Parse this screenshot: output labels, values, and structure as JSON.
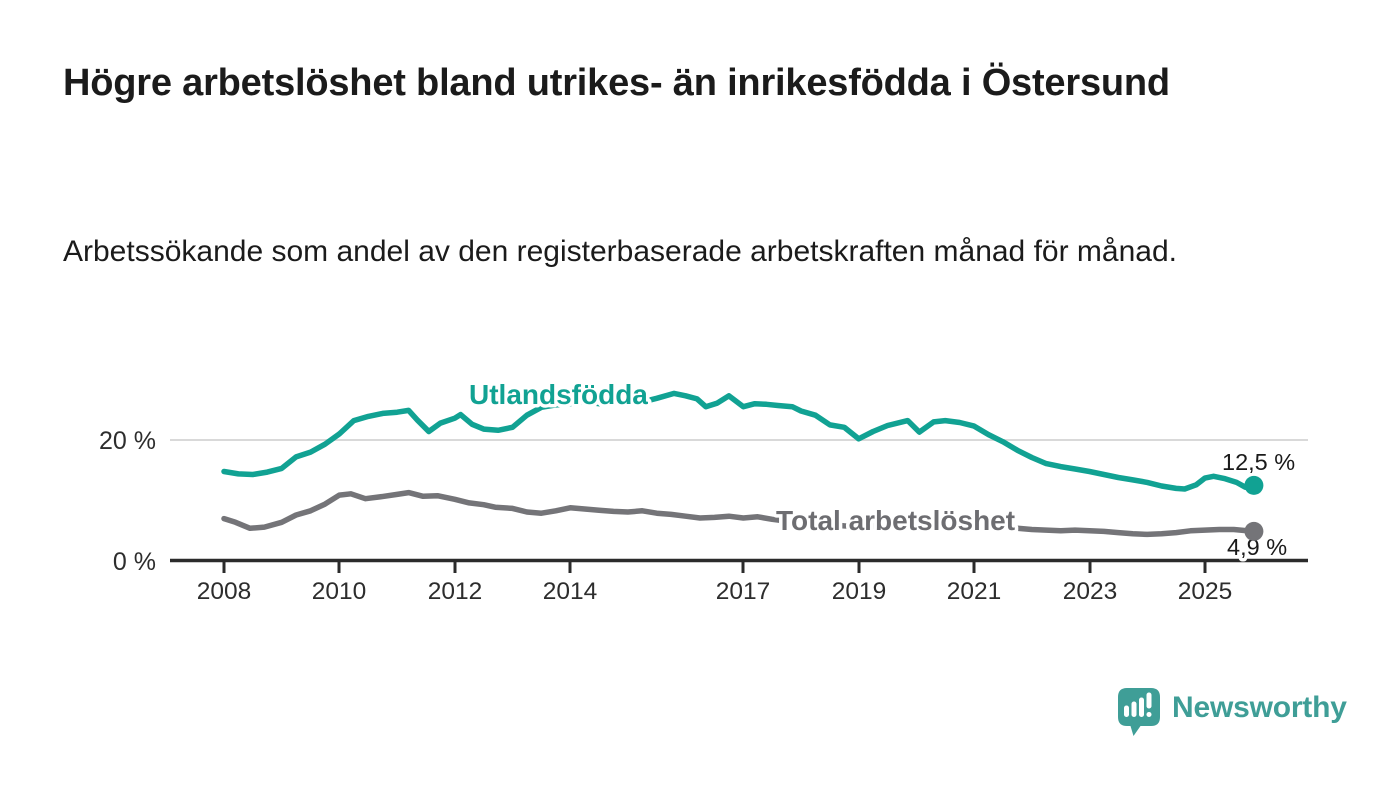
{
  "header": {
    "title": "Högre arbetslöshet bland utrikes- än inrikesfödda i Östersund",
    "subtitle": "Arbetssökande som andel av den registerbaserade arbetskraften månad för månad."
  },
  "chart_data": {
    "type": "line",
    "title": "Högre arbetslöshet bland utrikes- än inrikesfödda i Östersund",
    "subtitle": "Arbetssökande som andel av den registerbaserade arbetskraften månad för månad.",
    "unit": "%",
    "x_ticks": [
      "2008",
      "2010",
      "2012",
      "2014",
      "2017",
      "2019",
      "2021",
      "2023",
      "2025"
    ],
    "y_ticks": [
      {
        "value": 20,
        "label": "20 %"
      },
      {
        "value": 0,
        "label": "0 %"
      }
    ],
    "ylim": [
      0,
      30
    ],
    "x_range": [
      2008.0,
      2025.85
    ],
    "grid": "single horizontal gridline at 20 %",
    "legend": "inline labels next to lines",
    "series": [
      {
        "name": "Utlandsfödda",
        "color": "#11a293",
        "label_color": "#11a293",
        "end_label": "12,5 %",
        "end_value": 12.5,
        "points": [
          [
            2008.0,
            14.8
          ],
          [
            2008.25,
            14.4
          ],
          [
            2008.5,
            14.3
          ],
          [
            2008.75,
            14.7
          ],
          [
            2009.0,
            15.3
          ],
          [
            2009.25,
            17.2
          ],
          [
            2009.5,
            18.0
          ],
          [
            2009.75,
            19.3
          ],
          [
            2010.0,
            21.0
          ],
          [
            2010.25,
            23.2
          ],
          [
            2010.5,
            23.9
          ],
          [
            2010.75,
            24.4
          ],
          [
            2011.0,
            24.6
          ],
          [
            2011.2,
            24.9
          ],
          [
            2011.35,
            23.3
          ],
          [
            2011.55,
            21.4
          ],
          [
            2011.75,
            22.8
          ],
          [
            2012.0,
            23.6
          ],
          [
            2012.1,
            24.2
          ],
          [
            2012.3,
            22.6
          ],
          [
            2012.5,
            21.8
          ],
          [
            2012.75,
            21.6
          ],
          [
            2013.0,
            22.1
          ],
          [
            2013.25,
            24.1
          ],
          [
            2013.5,
            25.4
          ],
          [
            2013.75,
            25.8
          ],
          [
            2014.0,
            26.0
          ],
          [
            2014.25,
            26.3
          ],
          [
            2014.5,
            26.0
          ],
          [
            2014.75,
            26.2
          ],
          [
            2015.0,
            26.5
          ],
          [
            2015.25,
            26.3
          ],
          [
            2015.5,
            26.9
          ],
          [
            2015.8,
            27.7
          ],
          [
            2016.0,
            27.3
          ],
          [
            2016.2,
            26.8
          ],
          [
            2016.35,
            25.5
          ],
          [
            2016.55,
            26.1
          ],
          [
            2016.75,
            27.3
          ],
          [
            2017.0,
            25.5
          ],
          [
            2017.2,
            26.0
          ],
          [
            2017.4,
            25.9
          ],
          [
            2017.6,
            25.7
          ],
          [
            2017.85,
            25.5
          ],
          [
            2018.0,
            24.8
          ],
          [
            2018.25,
            24.1
          ],
          [
            2018.5,
            22.5
          ],
          [
            2018.75,
            22.1
          ],
          [
            2019.0,
            20.2
          ],
          [
            2019.25,
            21.4
          ],
          [
            2019.5,
            22.4
          ],
          [
            2019.85,
            23.2
          ],
          [
            2020.05,
            21.3
          ],
          [
            2020.3,
            23.0
          ],
          [
            2020.5,
            23.2
          ],
          [
            2020.75,
            22.9
          ],
          [
            2021.0,
            22.3
          ],
          [
            2021.25,
            20.9
          ],
          [
            2021.5,
            19.7
          ],
          [
            2021.75,
            18.3
          ],
          [
            2022.0,
            17.1
          ],
          [
            2022.25,
            16.1
          ],
          [
            2022.5,
            15.6
          ],
          [
            2022.75,
            15.2
          ],
          [
            2023.0,
            14.8
          ],
          [
            2023.25,
            14.3
          ],
          [
            2023.5,
            13.8
          ],
          [
            2023.75,
            13.4
          ],
          [
            2024.0,
            13.0
          ],
          [
            2024.25,
            12.4
          ],
          [
            2024.5,
            12.0
          ],
          [
            2024.65,
            11.9
          ],
          [
            2024.85,
            12.6
          ],
          [
            2025.0,
            13.7
          ],
          [
            2025.15,
            14.0
          ],
          [
            2025.35,
            13.6
          ],
          [
            2025.55,
            13.0
          ],
          [
            2025.7,
            12.2
          ],
          [
            2025.85,
            12.5
          ]
        ]
      },
      {
        "name": "Total arbetslöshet",
        "color": "#747478",
        "label_color": "#6d6d71",
        "end_label": "4,9 %",
        "end_value": 4.9,
        "points": [
          [
            2008.0,
            7.0
          ],
          [
            2008.2,
            6.4
          ],
          [
            2008.45,
            5.4
          ],
          [
            2008.7,
            5.6
          ],
          [
            2009.0,
            6.4
          ],
          [
            2009.25,
            7.6
          ],
          [
            2009.5,
            8.3
          ],
          [
            2009.75,
            9.4
          ],
          [
            2010.0,
            10.9
          ],
          [
            2010.2,
            11.1
          ],
          [
            2010.45,
            10.3
          ],
          [
            2010.7,
            10.6
          ],
          [
            2011.0,
            11.0
          ],
          [
            2011.2,
            11.3
          ],
          [
            2011.45,
            10.7
          ],
          [
            2011.7,
            10.8
          ],
          [
            2012.0,
            10.2
          ],
          [
            2012.25,
            9.6
          ],
          [
            2012.5,
            9.3
          ],
          [
            2012.7,
            8.9
          ],
          [
            2013.0,
            8.7
          ],
          [
            2013.25,
            8.1
          ],
          [
            2013.5,
            7.9
          ],
          [
            2013.75,
            8.3
          ],
          [
            2014.0,
            8.8
          ],
          [
            2014.25,
            8.6
          ],
          [
            2014.5,
            8.4
          ],
          [
            2014.75,
            8.2
          ],
          [
            2015.0,
            8.1
          ],
          [
            2015.25,
            8.3
          ],
          [
            2015.5,
            7.9
          ],
          [
            2015.75,
            7.7
          ],
          [
            2016.0,
            7.4
          ],
          [
            2016.25,
            7.1
          ],
          [
            2016.5,
            7.2
          ],
          [
            2016.75,
            7.4
          ],
          [
            2017.0,
            7.1
          ],
          [
            2017.25,
            7.3
          ],
          [
            2017.5,
            6.9
          ],
          [
            2017.75,
            6.6
          ],
          [
            2018.0,
            6.4
          ],
          [
            2018.25,
            6.2
          ],
          [
            2018.5,
            6.0
          ],
          [
            2018.75,
            5.8
          ],
          [
            2019.0,
            5.7
          ],
          [
            2019.25,
            5.8
          ],
          [
            2019.5,
            5.9
          ],
          [
            2019.75,
            6.0
          ],
          [
            2020.0,
            6.0
          ],
          [
            2020.25,
            6.6
          ],
          [
            2020.5,
            6.8
          ],
          [
            2020.75,
            6.6
          ],
          [
            2021.0,
            6.3
          ],
          [
            2021.25,
            6.0
          ],
          [
            2021.5,
            5.7
          ],
          [
            2021.75,
            5.4
          ],
          [
            2022.0,
            5.2
          ],
          [
            2022.25,
            5.1
          ],
          [
            2022.5,
            5.0
          ],
          [
            2022.75,
            5.1
          ],
          [
            2023.0,
            5.0
          ],
          [
            2023.25,
            4.9
          ],
          [
            2023.5,
            4.7
          ],
          [
            2023.75,
            4.5
          ],
          [
            2024.0,
            4.4
          ],
          [
            2024.25,
            4.5
          ],
          [
            2024.5,
            4.7
          ],
          [
            2024.75,
            5.0
          ],
          [
            2025.0,
            5.1
          ],
          [
            2025.25,
            5.2
          ],
          [
            2025.5,
            5.2
          ],
          [
            2025.85,
            4.9
          ]
        ]
      }
    ]
  },
  "logo": {
    "text": "Newsworthy",
    "color": "#3f9e97",
    "icon": "speech-bubble-bar-chart-icon"
  }
}
